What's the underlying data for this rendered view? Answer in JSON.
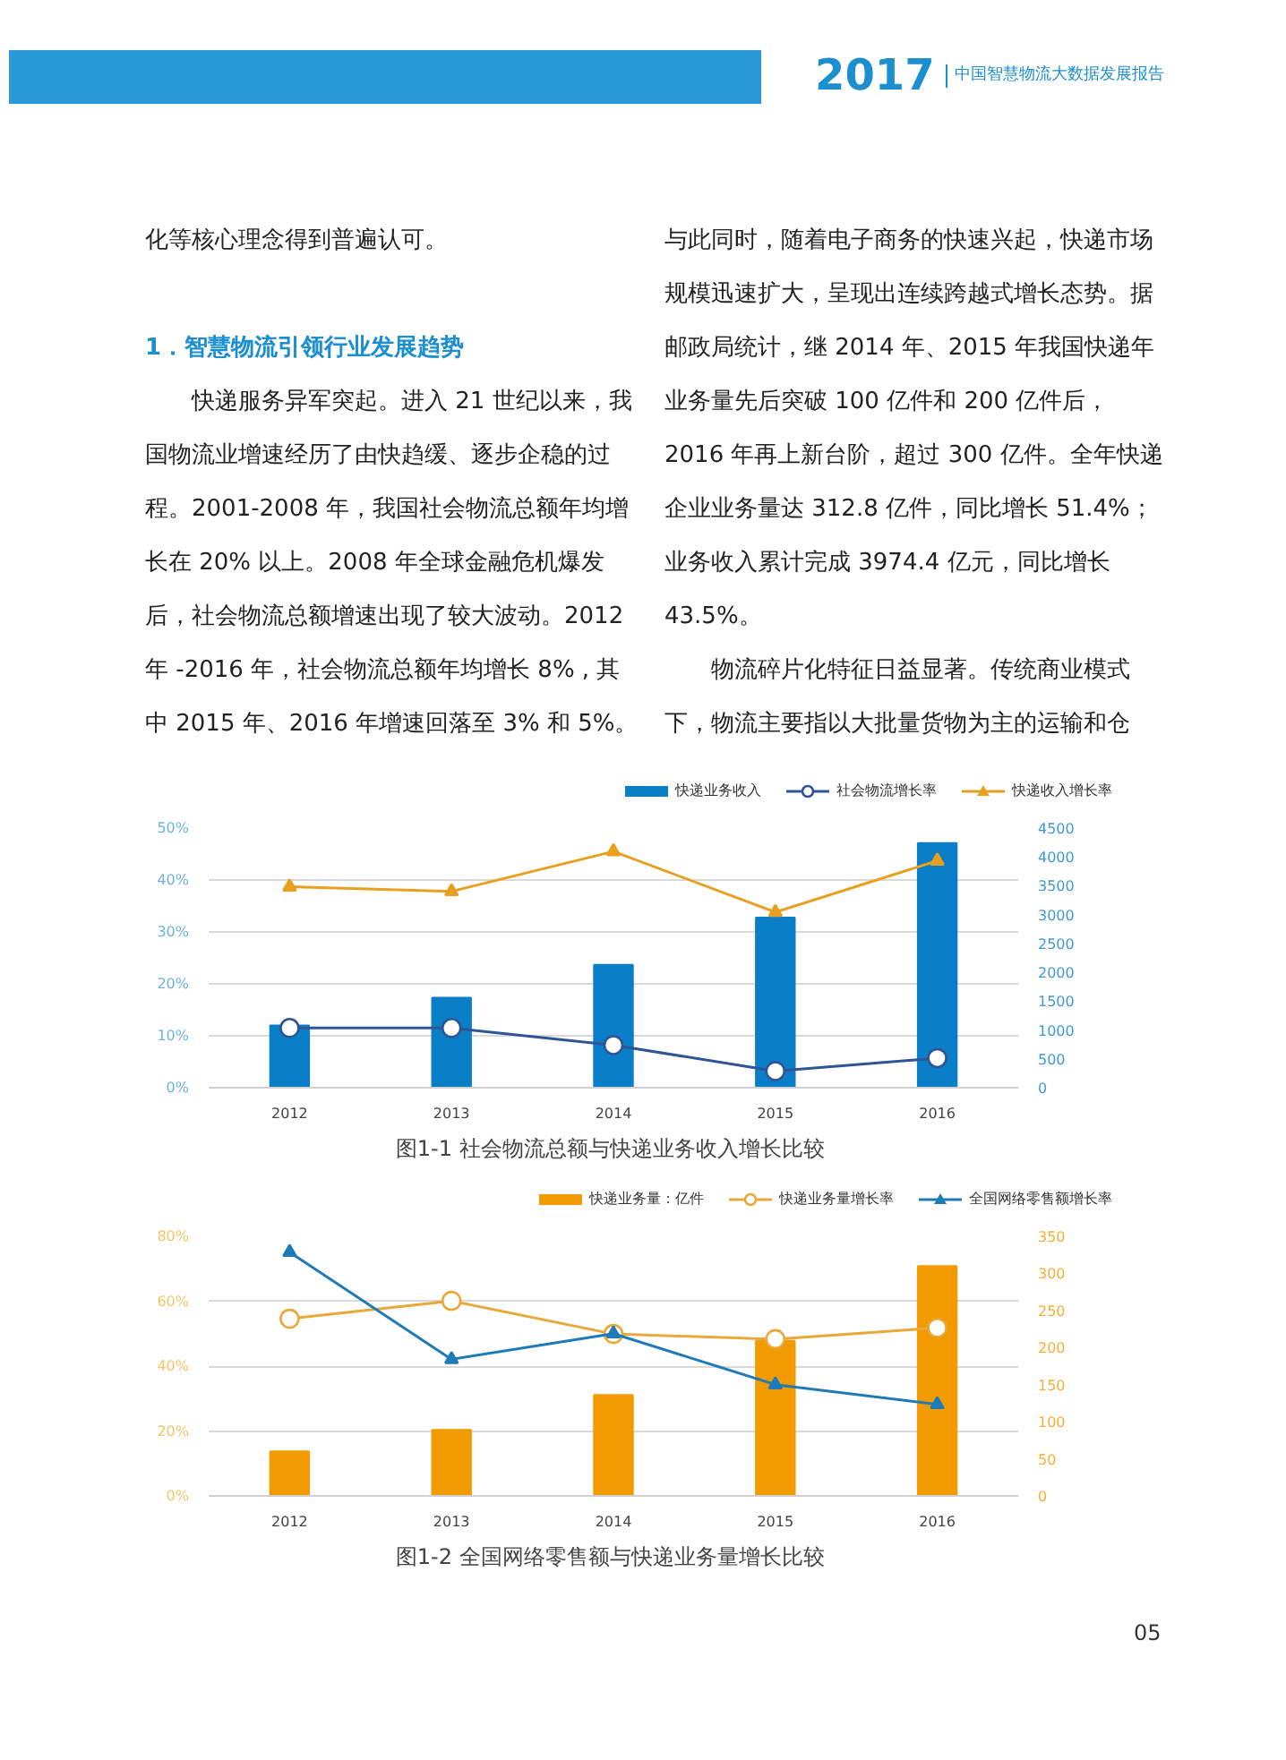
{
  "chart_data": [
    {
      "type": "other",
      "title": "1．智慧物流引领行业发展趋势",
      "annotations": [
        "2017",
        "中国智慧物流大数据发展报告",
        "化等核心理念得到普遍认可。",
        "快递服务异军突起。进入 21 世纪以来，我国物流业增速经历了由快趋缓、逐步企稳的过程。2001-2008 年，我国社会物流总额年均增长在 20% 以上。2008 年全球金融危机爆发后，社会物流总额增速出现了较大波动。2012 年 -2016 年，社会物流总额年均增长 8% , 其中 2015 年、2016 年增速回落至 3% 和 5%。",
        "与此同时，随着电子商务的快速兴起，快递市场规模迅速扩大，呈现出连续跨越式增长态势。据邮政局统计，继 2014 年、2015 年我国快递年业务量先后突破 100 亿件和 200 亿件后，2016 年再上新台阶，超过 300 亿件。全年快递企业业务量达 312.8 亿件，同比增长 51.4%；业务收入累计完成 3974.4 亿元，同比增长 43.5%。",
        "物流碎片化特征日益显著。传统商业模式下，物流主要指以大批量货物为主的运输和仓",
        "05"
      ]
    },
    {
      "type": "bar",
      "title": "图1-1  社会物流总额与快递业务收入增长比较",
      "categories": [
        "2012",
        "2013",
        "2014",
        "2015",
        "2016"
      ],
      "ylim": [
        0,
        50
      ],
      "yticks": [
        {
          "value": 0,
          "label": "0%"
        },
        {
          "value": 10,
          "label": "10%"
        },
        {
          "value": 20,
          "label": "20%"
        },
        {
          "value": 30,
          "label": "30%"
        },
        {
          "value": 40,
          "label": "40%"
        },
        {
          "value": 50,
          "label": "50%"
        }
      ],
      "y2lim": [
        0,
        4500
      ],
      "y2ticks": [
        0,
        500,
        1000,
        1500,
        2000,
        2500,
        3000,
        3500,
        4000,
        4500
      ],
      "grid": "y",
      "legend": "top right",
      "series": [
        {
          "name": "快递业务收入",
          "type": "bar",
          "axis": "y2",
          "color": "#0a7fc8",
          "values": [
            1080,
            1560,
            2130,
            2950,
            4240
          ]
        },
        {
          "name": "社会物流增长率",
          "type": "line",
          "marker": "circle",
          "color": "#2f5597",
          "values": [
            11.5,
            11.5,
            8.2,
            3.2,
            5.7
          ]
        },
        {
          "name": "快递收入增长率",
          "type": "line",
          "marker": "triangle",
          "color": "#e8a020",
          "values": [
            38.7,
            37.8,
            45.5,
            33.8,
            43.7
          ]
        }
      ]
    },
    {
      "type": "bar",
      "title": "图1-2  全国网络零售额与快递业务量增长比较",
      "categories": [
        "2012",
        "2013",
        "2014",
        "2015",
        "2016"
      ],
      "ylim": [
        0,
        80
      ],
      "yticks": [
        {
          "value": 0,
          "label": "0%"
        },
        {
          "value": 20,
          "label": "20%"
        },
        {
          "value": 40,
          "label": "40%"
        },
        {
          "value": 60,
          "label": "60%"
        },
        {
          "value": 80,
          "label": "80%"
        }
      ],
      "y2lim": [
        0,
        350
      ],
      "y2ticks": [
        0,
        50,
        100,
        150,
        200,
        250,
        300,
        350
      ],
      "grid": "y",
      "legend": "top right",
      "series": [
        {
          "name": "快递业务量：亿件",
          "type": "bar",
          "axis": "y2",
          "color": "#f29b00",
          "values": [
            60,
            89,
            136,
            209,
            310
          ]
        },
        {
          "name": "快递业务量增长率",
          "type": "line",
          "marker": "circle",
          "color": "#e8a83a",
          "values": [
            54.6,
            60.1,
            49.9,
            48.3,
            51.8
          ]
        },
        {
          "name": "全国网络零售额增长率",
          "type": "line",
          "marker": "triangle",
          "color": "#1f7bb8",
          "values": [
            75.1,
            42.1,
            50.0,
            34.3,
            28.2
          ]
        }
      ]
    }
  ]
}
